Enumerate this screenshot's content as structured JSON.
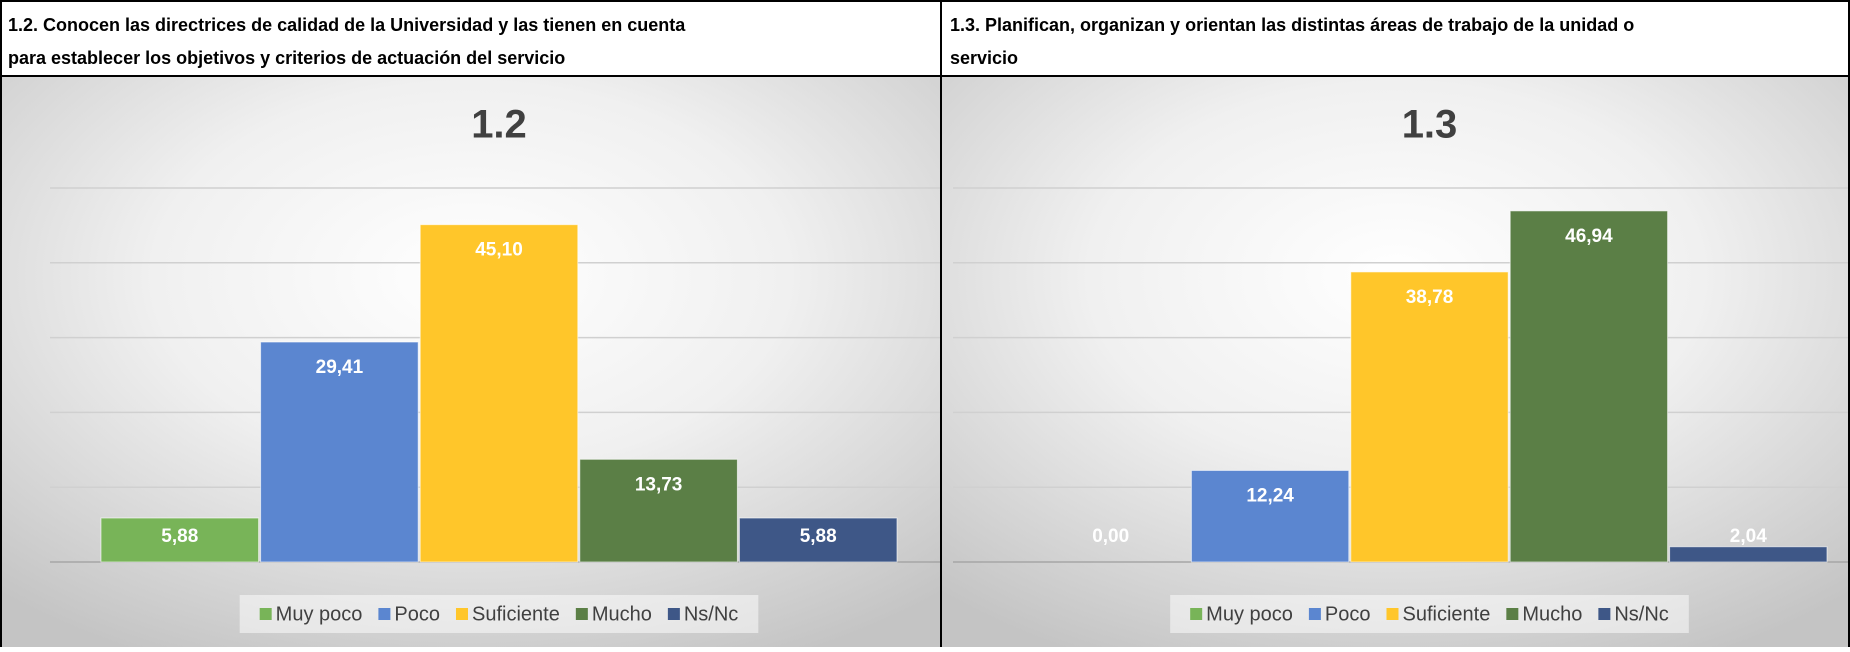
{
  "chart_data": [
    {
      "type": "bar",
      "heading": [
        "1.2. Conocen las directrices de calidad de la Universidad y las tienen en cuenta",
        "para establecer los objetivos y criterios de actuación del servicio"
      ],
      "title": "1.2",
      "categories": [
        null
      ],
      "ylim": [
        0,
        50
      ],
      "yticks": [
        0,
        10,
        20,
        30,
        40,
        50
      ],
      "grid": true,
      "legend": "bottom",
      "series": [
        {
          "name": "Muy poco",
          "color": "#78b458",
          "values": [
            5.88
          ],
          "value_labels": [
            "5,88"
          ]
        },
        {
          "name": "Poco",
          "color": "#5b86d0",
          "values": [
            29.41
          ],
          "value_labels": [
            "29,41"
          ]
        },
        {
          "name": "Suficiente",
          "color": "#ffc62a",
          "values": [
            45.1
          ],
          "value_labels": [
            "45,10"
          ]
        },
        {
          "name": "Mucho",
          "color": "#5b7f46",
          "values": [
            13.73
          ],
          "value_labels": [
            "13,73"
          ]
        },
        {
          "name": "Ns/Nc",
          "color": "#3e5787",
          "values": [
            5.88
          ],
          "value_labels": [
            "5,88"
          ]
        }
      ]
    },
    {
      "type": "bar",
      "heading": [
        "1.3. Planifican, organizan y orientan las distintas áreas de trabajo de la unidad o",
        "servicio"
      ],
      "title": "1.3",
      "categories": [
        null
      ],
      "ylim": [
        0,
        50
      ],
      "yticks": [
        0,
        10,
        20,
        30,
        40,
        50
      ],
      "grid": true,
      "legend": "bottom",
      "series": [
        {
          "name": "Muy poco",
          "color": "#78b458",
          "values": [
            0.0
          ],
          "value_labels": [
            "0,00"
          ]
        },
        {
          "name": "Poco",
          "color": "#5b86d0",
          "values": [
            12.24
          ],
          "value_labels": [
            "12,24"
          ]
        },
        {
          "name": "Suficiente",
          "color": "#ffc62a",
          "values": [
            38.78
          ],
          "value_labels": [
            "38,78"
          ]
        },
        {
          "name": "Mucho",
          "color": "#5b7f46",
          "values": [
            46.94
          ],
          "value_labels": [
            "46,94"
          ]
        },
        {
          "name": "Ns/Nc",
          "color": "#3e5787",
          "values": [
            2.04
          ],
          "value_labels": [
            "2,04"
          ]
        }
      ]
    }
  ]
}
